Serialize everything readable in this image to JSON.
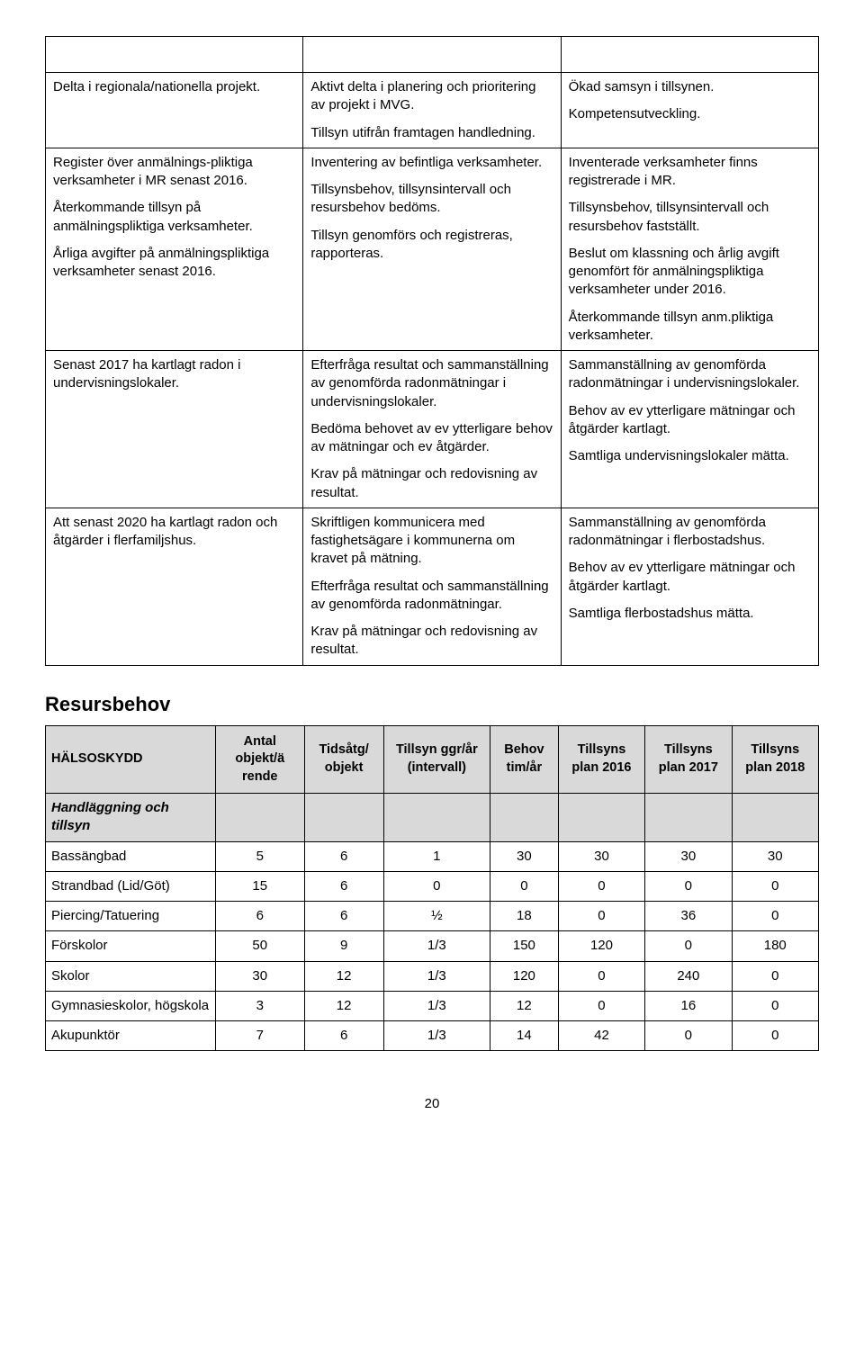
{
  "topTable": {
    "rows": [
      {
        "c1": [],
        "c2": [],
        "c3": []
      },
      {
        "c1": [
          "Delta i regionala/nationella projekt."
        ],
        "c2": [
          "Aktivt delta i planering och prioritering av projekt i MVG.",
          "Tillsyn utifrån framtagen handledning."
        ],
        "c3": [
          "Ökad samsyn i tillsynen.",
          "Kompetensutveckling."
        ]
      },
      {
        "c1": [
          "Register över anmälnings-pliktiga verksamheter i MR senast 2016.",
          "Återkommande tillsyn på anmälningspliktiga verksamheter.",
          "Årliga avgifter på anmälningspliktiga verksamheter senast 2016."
        ],
        "c2": [
          "Inventering av befintliga verksamheter.",
          "Tillsynsbehov, tillsynsintervall och resursbehov bedöms.",
          "Tillsyn genomförs och registreras, rapporteras."
        ],
        "c3": [
          "Inventerade verksamheter finns registrerade i MR.",
          "Tillsynsbehov, tillsynsintervall och resursbehov fastställt.",
          "Beslut om klassning och årlig avgift genomfört för anmälningspliktiga verksamheter under 2016.",
          "Återkommande tillsyn anm.pliktiga verksamheter."
        ]
      },
      {
        "c1": [
          "Senast 2017 ha kartlagt radon i undervisningslokaler."
        ],
        "c2": [
          "Efterfråga resultat och sammanställning av genomförda radonmätningar i undervisningslokaler.",
          "Bedöma behovet av ev ytterligare behov av mätningar och ev åtgärder.",
          "Krav på mätningar och redovisning av resultat."
        ],
        "c3": [
          "Sammanställning av genomförda radonmätningar i undervisningslokaler.",
          "Behov av ev ytterligare mätningar och åtgärder kartlagt.",
          "Samtliga undervisningslokaler mätta."
        ]
      },
      {
        "c1": [
          "Att senast 2020 ha kartlagt radon och åtgärder i flerfamiljshus."
        ],
        "c2": [
          "Skriftligen kommunicera med fastighetsägare i kommunerna om kravet på mätning.",
          "Efterfråga resultat och sammanställning av genomförda radonmätningar.",
          "Krav på mätningar och redovisning av resultat."
        ],
        "c3": [
          "Sammanställning av genomförda radonmätningar i flerbostadshus.",
          "Behov av ev ytterligare mätningar och åtgärder kartlagt.",
          "Samtliga flerbostadshus mätta."
        ]
      }
    ]
  },
  "sectionHeading": "Resursbehov",
  "resursTable": {
    "mainHeader": "HÄLSOSKYDD",
    "headers": [
      "Antal objekt/ä rende",
      "Tidsåtg/ objekt",
      "Tillsyn ggr/år (intervall)",
      "Behov tim/år",
      "Tillsyns plan 2016",
      "Tillsyns plan 2017",
      "Tillsyns plan 2018"
    ],
    "subheader": "Handläggning och tillsyn",
    "rows": [
      {
        "label": "Bassängbad",
        "v": [
          "5",
          "6",
          "1",
          "30",
          "30",
          "30",
          "30"
        ]
      },
      {
        "label": "Strandbad (Lid/Göt)",
        "v": [
          "15",
          "6",
          "0",
          "0",
          "0",
          "0",
          "0"
        ]
      },
      {
        "label": "Piercing/Tatuering",
        "v": [
          "6",
          "6",
          "½",
          "18",
          "0",
          "36",
          "0"
        ]
      },
      {
        "label": "Förskolor",
        "v": [
          "50",
          "9",
          "1/3",
          "150",
          "120",
          "0",
          "180"
        ]
      },
      {
        "label": "Skolor",
        "v": [
          "30",
          "12",
          "1/3",
          "120",
          "0",
          "240",
          "0"
        ]
      },
      {
        "label": "Gymnasieskolor, högskola",
        "v": [
          "3",
          "12",
          "1/3",
          "12",
          "0",
          "16",
          "0"
        ]
      },
      {
        "label": "Akupunktör",
        "v": [
          "7",
          "6",
          "1/3",
          "14",
          "42",
          "0",
          "0"
        ]
      }
    ]
  },
  "pageNumber": "20"
}
